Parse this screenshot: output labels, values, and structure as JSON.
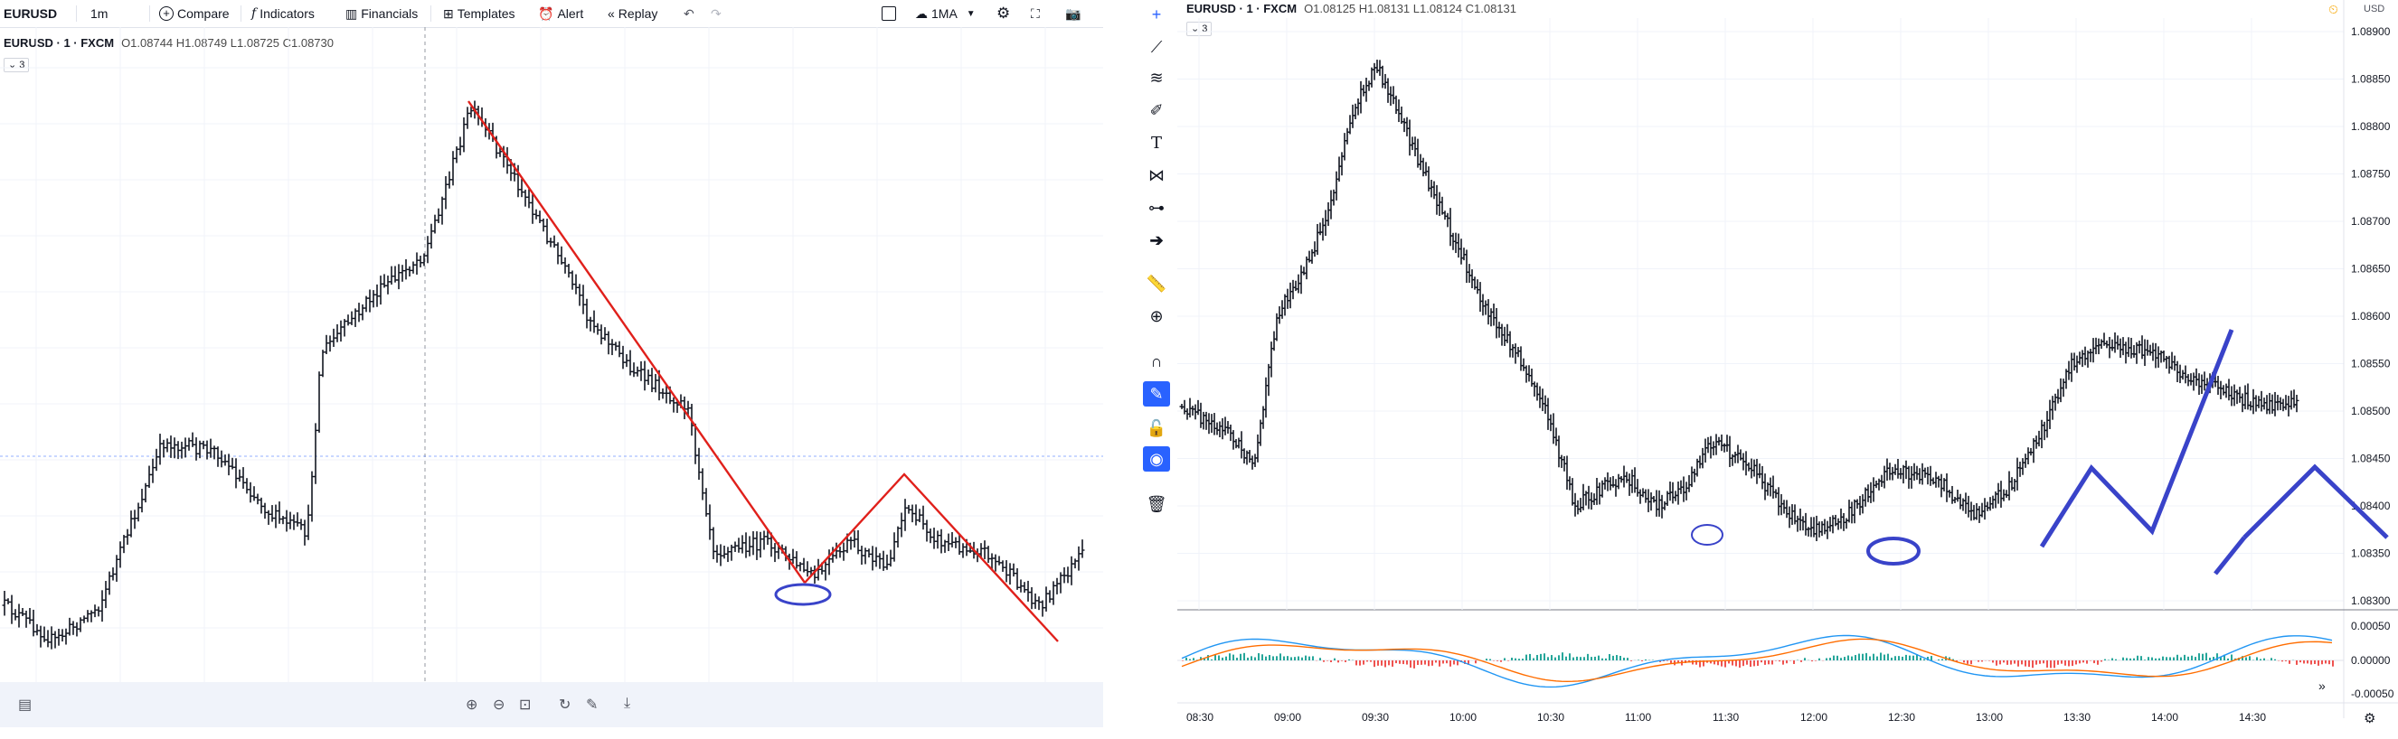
{
  "left_toolbar": {
    "symbol": "EURUSD",
    "interval": "1m",
    "compare": "Compare",
    "indicators": "Indicators",
    "financials": "Financials",
    "templates": "Templates",
    "alert": "Alert",
    "replay": "Replay",
    "layout_name": "1MA"
  },
  "left_chart": {
    "legend_symbol": "EURUSD · 1 · FXCM",
    "legend_ohlc": "O1.08744  H1.08749  L1.08725  C1.08730",
    "indicator_count": "3"
  },
  "right_chart": {
    "legend_symbol": "EURUSD · 1 · FXCM",
    "legend_ohlc": "O1.08125  H1.08131  L1.08124  C1.08131",
    "indicator_count": "3",
    "currency": "USD",
    "price_ticks": [
      "1.08900",
      "1.08850",
      "1.08800",
      "1.08750",
      "1.08700",
      "1.08650",
      "1.08600",
      "1.08550",
      "1.08500",
      "1.08450",
      "1.08400",
      "1.08350",
      "1.08300"
    ],
    "macd_ticks": [
      "0.00050",
      "0.00000",
      "-0.00050"
    ],
    "time_ticks": [
      "08:30",
      "09:00",
      "09:30",
      "10:00",
      "10:30",
      "11:00",
      "11:30",
      "12:00",
      "12:30",
      "13:00",
      "13:30",
      "14:00",
      "14:30"
    ]
  },
  "drawing_toolbar": {
    "icons": [
      "crosshair-icon",
      "trend-line-icon",
      "fib-icon",
      "brush-icon",
      "text-icon",
      "pattern-icon",
      "measure-icon",
      "arrow-icon",
      "ruler-icon",
      "zoom-icon",
      "magnet-icon",
      "lock-drawing-icon",
      "lock-icon",
      "eye-icon",
      "trash-icon"
    ]
  },
  "colors": {
    "bull": "#131722",
    "red_line": "#e0201b",
    "blue_marker": "#3943c9",
    "macd_blue": "#2196f3",
    "macd_orange": "#ff6d00",
    "hist_green": "#26a69a",
    "hist_red": "#ef5350",
    "accent": "#2962ff"
  }
}
